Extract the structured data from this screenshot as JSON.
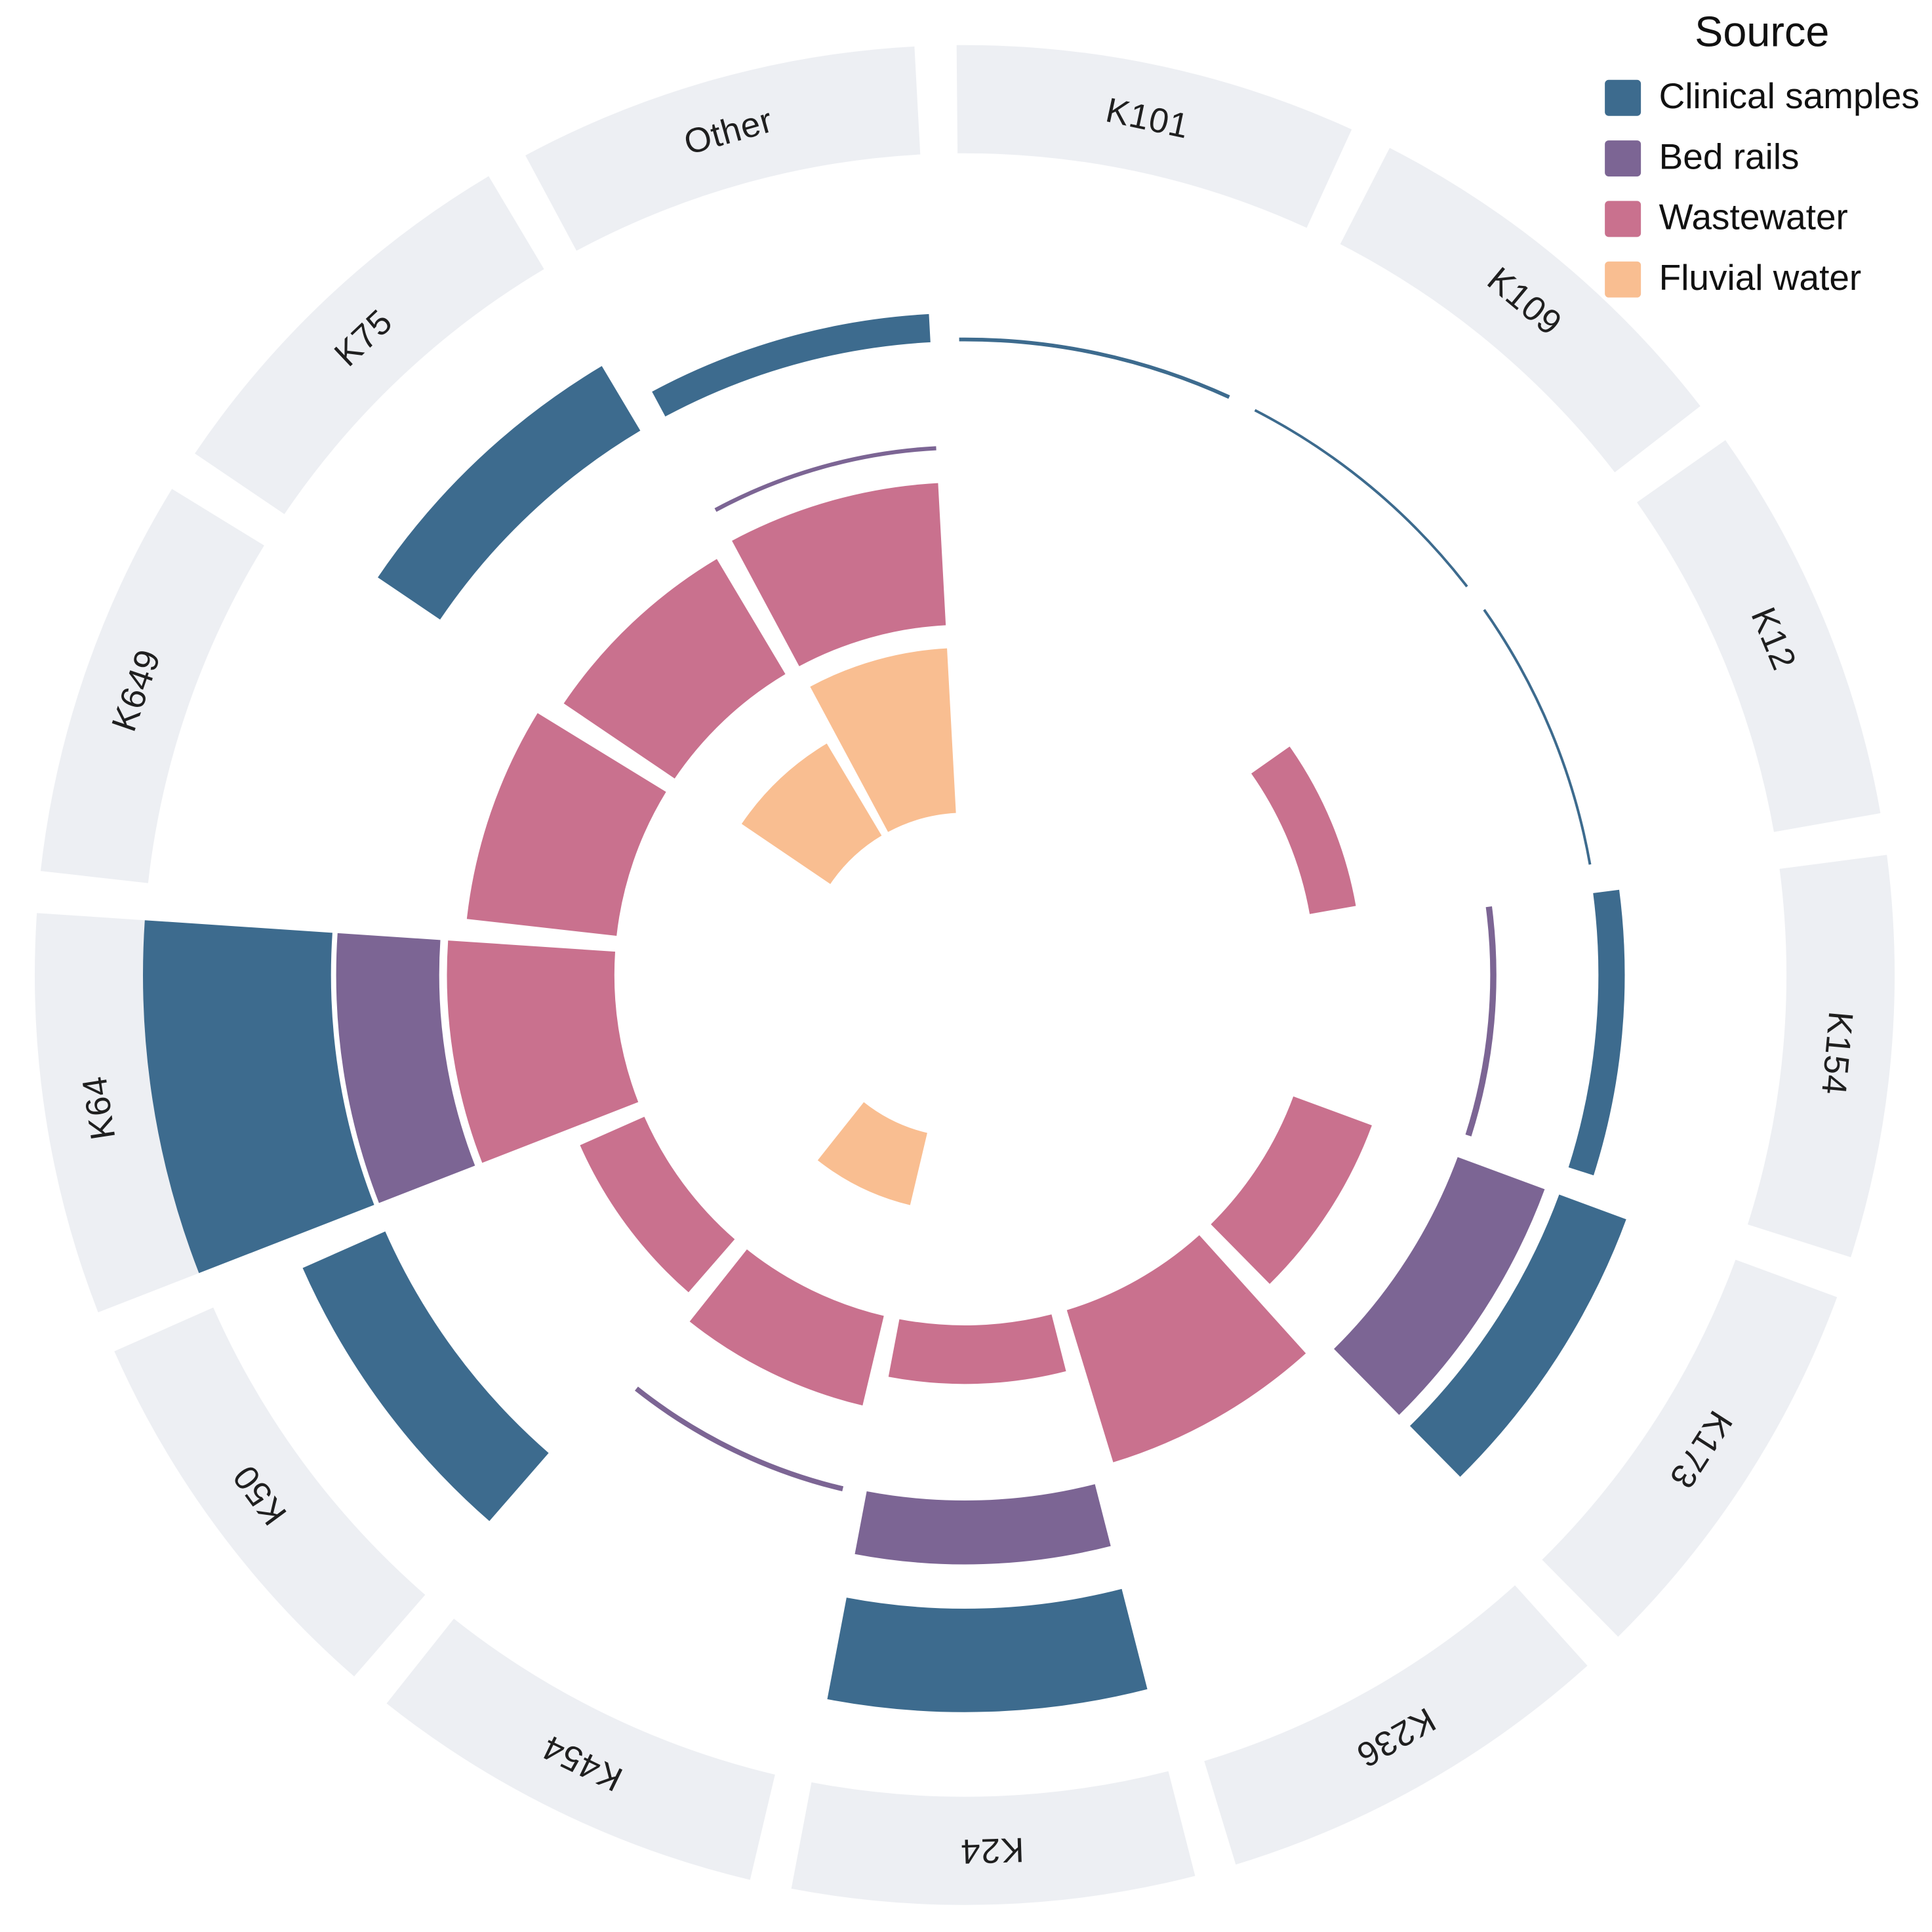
{
  "legend": {
    "title": "Source",
    "items": [
      {
        "label": "Clinical samples",
        "color": "#3D6B8E"
      },
      {
        "label": "Bed rails",
        "color": "#7C6594"
      },
      {
        "label": "Wastewater",
        "color": "#C9718E"
      },
      {
        "label": "Fluvial water",
        "color": "#F9BE91"
      }
    ]
  },
  "chart_data": {
    "type": "bar",
    "subtype": "circular-track-bar",
    "direction": "clockwise",
    "categories": [
      "K101",
      "K109",
      "K12",
      "K154",
      "K173",
      "K236",
      "K24",
      "K454",
      "K50",
      "K64",
      "K649",
      "K75",
      "Other"
    ],
    "series": [
      {
        "name": "Clinical samples",
        "color": "#3D6B8E",
        "values": [
          2,
          1.2,
          1,
          14,
          38,
          0,
          55,
          0,
          48,
          100,
          0,
          40,
          15
        ]
      },
      {
        "name": "Bed rails",
        "color": "#7C6594",
        "values": [
          0,
          0,
          0,
          6,
          90,
          0,
          62,
          5,
          0,
          100,
          0,
          0,
          4
        ]
      },
      {
        "name": "Wastewater",
        "color": "#C9718E",
        "values": [
          0,
          0,
          28,
          0,
          50,
          95,
          35,
          55,
          42,
          100,
          90,
          80,
          85
        ]
      },
      {
        "name": "Fluvial water",
        "color": "#F9BE91",
        "values": [
          0,
          0,
          0,
          0,
          0,
          0,
          0,
          45,
          0,
          0,
          0,
          65,
          100
        ]
      }
    ],
    "units": "relative bar height (percent of track maximum, estimated from pixels; no numeric axis shown)",
    "tracks_order_outer_to_inner": [
      "Clinical samples",
      "Bed rails",
      "Wastewater",
      "Fluvial water"
    ],
    "title": "",
    "xlabel": "",
    "ylabel": ""
  },
  "styles": {
    "ring_color": "#EDEFF3",
    "label_color": "#1F1F1F",
    "background": "#FFFFFF"
  }
}
